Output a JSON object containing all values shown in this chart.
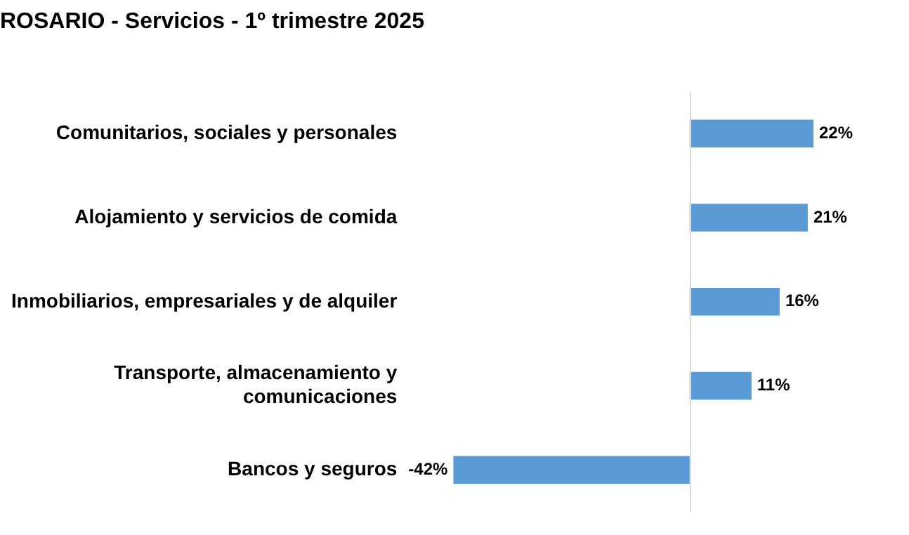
{
  "chart_data": {
    "type": "bar",
    "orientation": "horizontal",
    "title": "ROSARIO - Servicios - 1º trimestre 2025",
    "categories": [
      "Comunitarios, sociales y personales",
      "Alojamiento y servicios de comida",
      "Inmobiliarios, empresariales y de alquiler",
      "Transporte, almacenamiento y\ncomunicaciones",
      "Bancos y seguros"
    ],
    "values": [
      22,
      21,
      16,
      11,
      -42
    ],
    "value_labels": [
      "22%",
      "21%",
      "16%",
      "11%",
      "-42%"
    ],
    "color": "#5b9bd5",
    "tick_labels": "y",
    "grid": false,
    "legend": false
  }
}
